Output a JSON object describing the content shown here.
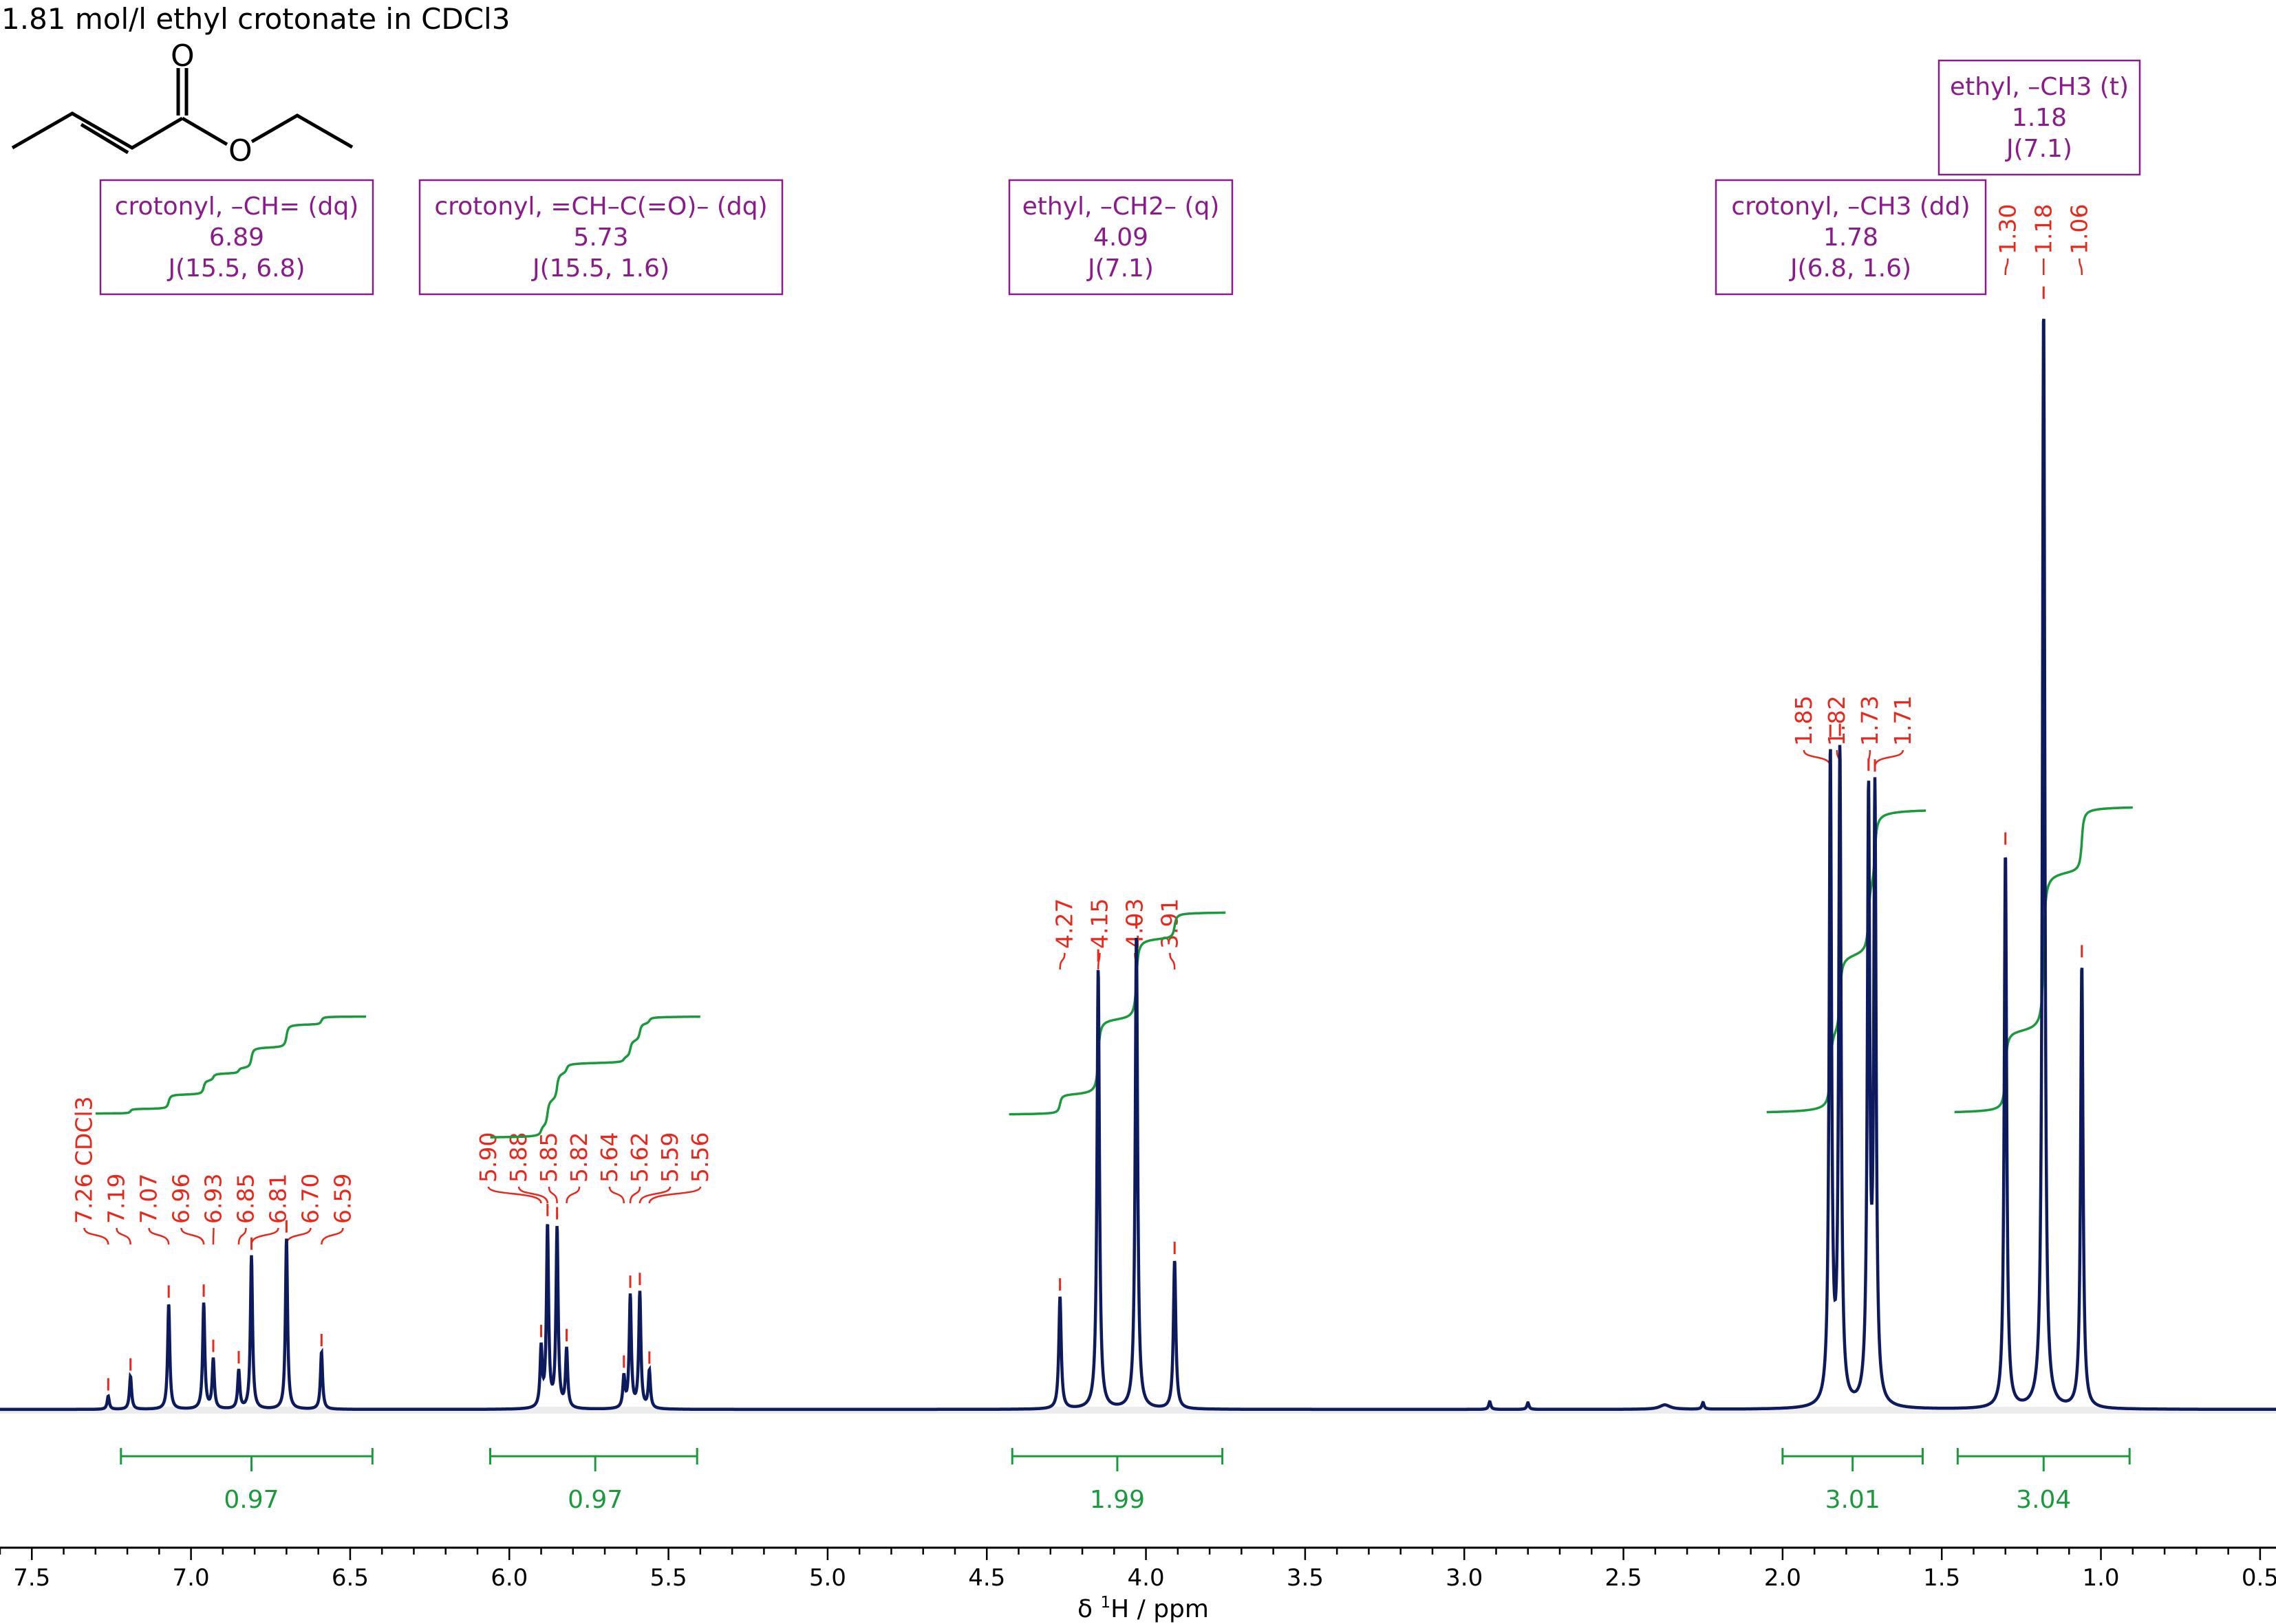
{
  "title": "1.81 mol/l ethyl crotonate in CDCl3",
  "colors": {
    "spectrum": "#0d1a5e",
    "peak_labels": "#e8281c",
    "multiplets": "#8b1a8b",
    "integrals": "#1a9a3c",
    "baseline_band": "#c8c8c8"
  },
  "structure": {
    "atoms": [
      "O",
      "O"
    ]
  },
  "chart_data": {
    "type": "line",
    "xlabel_prefix": "δ ",
    "xlabel_sup": "1",
    "xlabel_suffix": "H / ppm",
    "xlim": [
      7.6,
      0.45
    ],
    "x_ticks": [
      "7.5",
      "7.0",
      "6.5",
      "6.0",
      "5.5",
      "5.0",
      "4.5",
      "4.0",
      "3.5",
      "3.0",
      "2.5",
      "2.0",
      "1.5",
      "1.0",
      "0.5"
    ],
    "x_tick_values": [
      7.5,
      7.0,
      6.5,
      6.0,
      5.5,
      5.0,
      4.5,
      4.0,
      3.5,
      3.0,
      2.5,
      2.0,
      1.5,
      1.0,
      0.5
    ],
    "y_range": [
      0,
      1.0
    ],
    "peaks": [
      {
        "x": 7.26,
        "h": 0.012,
        "w": 0.004
      },
      {
        "x": 7.19,
        "h": 0.03,
        "w": 0.004
      },
      {
        "x": 7.07,
        "h": 0.096,
        "w": 0.004
      },
      {
        "x": 6.96,
        "h": 0.096,
        "w": 0.004
      },
      {
        "x": 6.93,
        "h": 0.045,
        "w": 0.004
      },
      {
        "x": 6.85,
        "h": 0.035,
        "w": 0.004
      },
      {
        "x": 6.81,
        "h": 0.139,
        "w": 0.004
      },
      {
        "x": 6.7,
        "h": 0.155,
        "w": 0.004
      },
      {
        "x": 6.59,
        "h": 0.052,
        "w": 0.004
      },
      {
        "x": 5.9,
        "h": 0.053,
        "w": 0.004
      },
      {
        "x": 5.88,
        "h": 0.165,
        "w": 0.004
      },
      {
        "x": 5.85,
        "h": 0.163,
        "w": 0.004
      },
      {
        "x": 5.82,
        "h": 0.053,
        "w": 0.004
      },
      {
        "x": 5.64,
        "h": 0.028,
        "w": 0.004
      },
      {
        "x": 5.62,
        "h": 0.102,
        "w": 0.004
      },
      {
        "x": 5.59,
        "h": 0.105,
        "w": 0.004
      },
      {
        "x": 5.56,
        "h": 0.034,
        "w": 0.004
      },
      {
        "x": 4.27,
        "h": 0.102,
        "w": 0.0045
      },
      {
        "x": 4.15,
        "h": 0.4,
        "w": 0.0045
      },
      {
        "x": 4.03,
        "h": 0.43,
        "w": 0.0045
      },
      {
        "x": 3.91,
        "h": 0.135,
        "w": 0.0045
      },
      {
        "x": 1.85,
        "h": 0.59,
        "w": 0.0045
      },
      {
        "x": 1.82,
        "h": 0.59,
        "w": 0.0045
      },
      {
        "x": 1.73,
        "h": 0.545,
        "w": 0.0045
      },
      {
        "x": 1.71,
        "h": 0.545,
        "w": 0.0045
      },
      {
        "x": 1.3,
        "h": 0.505,
        "w": 0.0045
      },
      {
        "x": 1.18,
        "h": 1.0,
        "w": 0.0045
      },
      {
        "x": 1.06,
        "h": 0.403,
        "w": 0.0045
      },
      {
        "x": 2.92,
        "h": 0.007,
        "w": 0.004
      },
      {
        "x": 2.8,
        "h": 0.006,
        "w": 0.004
      },
      {
        "x": 2.37,
        "h": 0.004,
        "w": 0.02
      },
      {
        "x": 2.25,
        "h": 0.006,
        "w": 0.004
      }
    ],
    "peak_labels": [
      {
        "text": "7.26 CDCl3",
        "x": 7.26,
        "group": 0
      },
      {
        "text": "7.19",
        "x": 7.19,
        "group": 0
      },
      {
        "text": "7.07",
        "x": 7.07,
        "group": 0
      },
      {
        "text": "6.96",
        "x": 6.96,
        "group": 0
      },
      {
        "text": "6.93",
        "x": 6.93,
        "group": 0
      },
      {
        "text": "6.85",
        "x": 6.85,
        "group": 0
      },
      {
        "text": "6.81",
        "x": 6.81,
        "group": 0
      },
      {
        "text": "6.70",
        "x": 6.7,
        "group": 0
      },
      {
        "text": "6.59",
        "x": 6.59,
        "group": 0
      },
      {
        "text": "5.90",
        "x": 5.9,
        "group": 1
      },
      {
        "text": "5.88",
        "x": 5.88,
        "group": 1
      },
      {
        "text": "5.85",
        "x": 5.85,
        "group": 1
      },
      {
        "text": "5.82",
        "x": 5.82,
        "group": 1
      },
      {
        "text": "5.64",
        "x": 5.64,
        "group": 1
      },
      {
        "text": "5.62",
        "x": 5.62,
        "group": 1
      },
      {
        "text": "5.59",
        "x": 5.59,
        "group": 1
      },
      {
        "text": "5.56",
        "x": 5.56,
        "group": 1
      },
      {
        "text": "4.27",
        "x": 4.27,
        "group": 2
      },
      {
        "text": "4.15",
        "x": 4.15,
        "group": 2
      },
      {
        "text": "4.03",
        "x": 4.03,
        "group": 2
      },
      {
        "text": "3.91",
        "x": 3.91,
        "group": 2
      },
      {
        "text": "1.85",
        "x": 1.85,
        "group": 3
      },
      {
        "text": "1.82",
        "x": 1.82,
        "group": 3
      },
      {
        "text": "1.73",
        "x": 1.73,
        "group": 3
      },
      {
        "text": "1.71",
        "x": 1.71,
        "group": 3
      },
      {
        "text": "1.30",
        "x": 1.3,
        "group": 4
      },
      {
        "text": "1.18",
        "x": 1.18,
        "group": 4
      },
      {
        "text": "1.06",
        "x": 1.06,
        "group": 4
      }
    ],
    "multiplets": [
      {
        "name": "crotonyl, –CH= (dq)",
        "shift": "6.89",
        "j": "J(15.5, 6.8)",
        "from": 7.28,
        "to": 6.43
      },
      {
        "name": "crotonyl, =CH–C(=O)– (dq)",
        "shift": "5.73",
        "j": "J(15.5, 1.6)",
        "from": 6.06,
        "to": 5.41
      },
      {
        "name": "ethyl, –CH2– (q)",
        "shift": "4.09",
        "j": "J(7.1)",
        "from": 4.43,
        "to": 3.74
      },
      {
        "name": "crotonyl, –CH3 (dd)",
        "shift": "1.78",
        "j": "J(6.8, 1.6)",
        "from": 2.05,
        "to": 1.21
      },
      {
        "name": "ethyl, –CH3 (t)",
        "shift": "1.18",
        "j": "J(7.1)",
        "from": 1.46,
        "to": 0.9
      }
    ],
    "integrals": [
      {
        "value": "0.97",
        "from": 7.22,
        "to": 6.43,
        "center": 6.81
      },
      {
        "value": "0.97",
        "from": 6.06,
        "to": 5.41,
        "center": 5.73
      },
      {
        "value": "1.99",
        "from": 4.42,
        "to": 3.76,
        "center": 4.09
      },
      {
        "value": "3.01",
        "from": 2.0,
        "to": 1.56,
        "center": 1.78
      },
      {
        "value": "3.04",
        "from": 1.45,
        "to": 0.91,
        "center": 1.18
      }
    ]
  }
}
